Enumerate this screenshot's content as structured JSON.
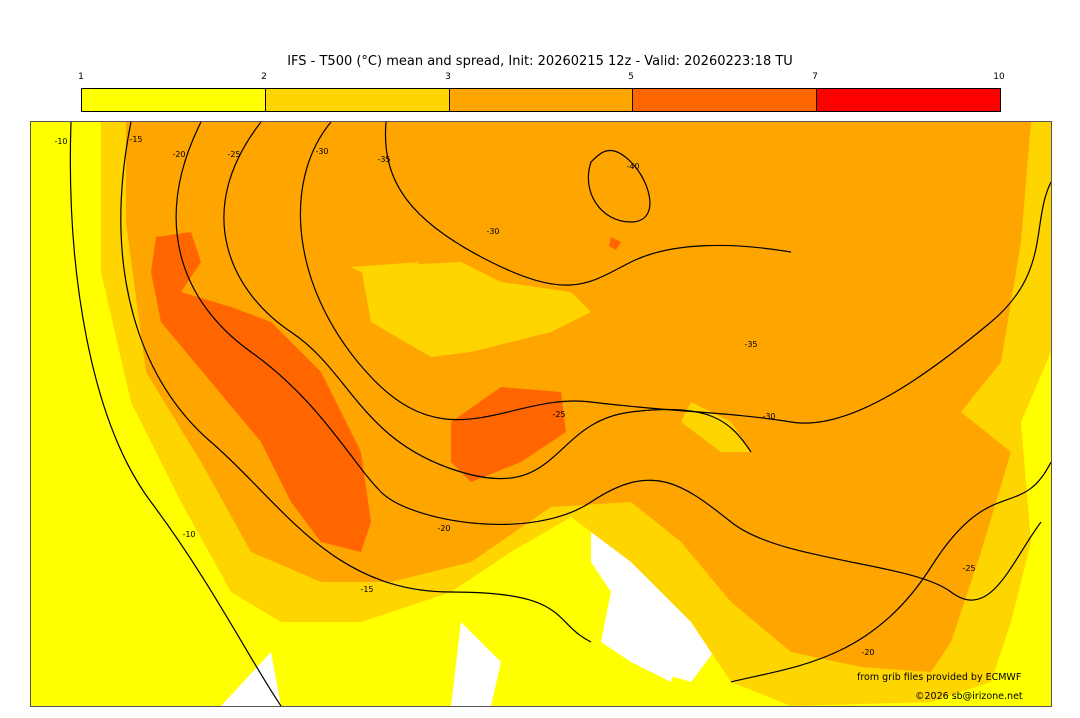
{
  "title": "IFS - T500 (°C) mean and spread, Init: 20260215 12z - Valid: 20260223:18 TU",
  "legend": {
    "ticks": [
      "1",
      "2",
      "3",
      "5",
      "7",
      "10"
    ],
    "colors": [
      "#ffff00",
      "#ffd500",
      "#ffa500",
      "#ff6600",
      "#ff0000"
    ]
  },
  "contour_labels": [
    "-10",
    "-15",
    "-20",
    "-25",
    "-30",
    "-35",
    "-40",
    "-30",
    "-25",
    "-20",
    "-15",
    "-10",
    "-30",
    "-35",
    "-25",
    "-20"
  ],
  "credits": {
    "source": "from grib files provided by ECMWF",
    "copyright": "©2026 sb@irizone.net"
  }
}
